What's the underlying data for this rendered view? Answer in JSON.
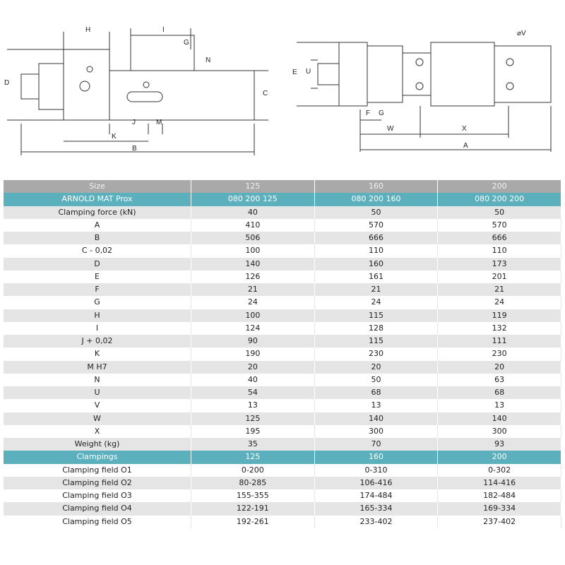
{
  "drawing": {
    "side_labels": [
      "H",
      "I",
      "G",
      "N",
      "D",
      "C",
      "J",
      "M",
      "K",
      "B"
    ],
    "top_labels": [
      "E",
      "U",
      "F",
      "G",
      "W",
      "X",
      "A",
      "⌀V"
    ]
  },
  "colors": {
    "header_gray": "#a9a9a9",
    "accent_teal": "#5cb0bd",
    "row_gray": "#e5e5e5"
  },
  "table": {
    "header": [
      "Size",
      "125",
      "160",
      "200"
    ],
    "product_row": [
      "ARNOLD MAT Prox",
      "080 200 125",
      "080 200 160",
      "080 200 200"
    ],
    "rows": [
      [
        "Clamping force (kN)",
        "40",
        "50",
        "50"
      ],
      [
        "A",
        "410",
        "570",
        "570"
      ],
      [
        "B",
        "506",
        "666",
        "666"
      ],
      [
        "C - 0,02",
        "100",
        "110",
        "110"
      ],
      [
        "D",
        "140",
        "160",
        "173"
      ],
      [
        "E",
        "126",
        "161",
        "201"
      ],
      [
        "F",
        "21",
        "21",
        "21"
      ],
      [
        "G",
        "24",
        "24",
        "24"
      ],
      [
        "H",
        "100",
        "115",
        "119"
      ],
      [
        "I",
        "124",
        "128",
        "132"
      ],
      [
        "J + 0,02",
        "90",
        "115",
        "111"
      ],
      [
        "K",
        "190",
        "230",
        "230"
      ],
      [
        "M H7",
        "20",
        "20",
        "20"
      ],
      [
        "N",
        "40",
        "50",
        "63"
      ],
      [
        "U",
        "54",
        "68",
        "68"
      ],
      [
        "V",
        "13",
        "13",
        "13"
      ],
      [
        "W",
        "125",
        "140",
        "140"
      ],
      [
        "X",
        "195",
        "300",
        "300"
      ],
      [
        "Weight (kg)",
        "35",
        "70",
        "93"
      ]
    ],
    "clampings_header": [
      "Clampings",
      "125",
      "160",
      "200"
    ],
    "clampings": [
      [
        "Clamping field O1",
        "0-200",
        "0-310",
        "0-302"
      ],
      [
        "Clamping field O2",
        "80-285",
        "106-416",
        "114-416"
      ],
      [
        "Clamping field O3",
        "155-355",
        "174-484",
        "182-484"
      ],
      [
        "Clamping field O4",
        "122-191",
        "165-334",
        "169-334"
      ],
      [
        "Clamping field O5",
        "192-261",
        "233-402",
        "237-402"
      ]
    ]
  }
}
